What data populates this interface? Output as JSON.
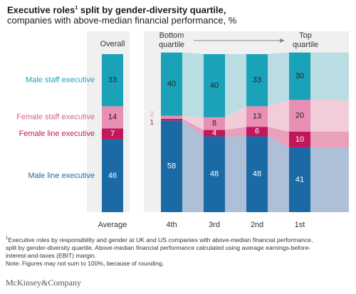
{
  "header": {
    "title": "Executive roles",
    "title_sup": "1",
    "title_rest": " split by gender-diversity quartile,",
    "subtitle": "companies with above-median financial performance, %"
  },
  "chart_data": {
    "type": "bar",
    "stacked": true,
    "left_panel": {
      "column_header": "Overall",
      "categories": [
        "Average"
      ],
      "series": [
        {
          "name": "Male line executive",
          "values": [
            46
          ],
          "color": "#1b6aa5"
        },
        {
          "name": "Female line executive",
          "values": [
            7
          ],
          "color": "#c2185b"
        },
        {
          "name": "Female staff executive",
          "values": [
            14
          ],
          "color": "#e88fb3"
        },
        {
          "name": "Male staff executive",
          "values": [
            33
          ],
          "color": "#1aa3b8"
        }
      ]
    },
    "right_panel": {
      "header_left": [
        "Bottom",
        "quartile"
      ],
      "header_right": [
        "Top",
        "quartile"
      ],
      "categories": [
        "4th",
        "3rd",
        "2nd",
        "1st"
      ],
      "series": [
        {
          "name": "Male line executive",
          "values": [
            58,
            48,
            48,
            41
          ],
          "color": "#1b6aa5"
        },
        {
          "name": "Female line executive",
          "values": [
            1,
            4,
            6,
            10
          ],
          "color": "#c2185b"
        },
        {
          "name": "Female staff executive",
          "values": [
            2,
            8,
            13,
            20
          ],
          "color": "#e88fb3"
        },
        {
          "name": "Male staff executive",
          "values": [
            40,
            40,
            33,
            30
          ],
          "color": "#1aa3b8"
        }
      ],
      "outside_labels": [
        {
          "series": "Female staff executive",
          "text": "2"
        },
        {
          "series": "Female line executive",
          "text": "1"
        }
      ]
    },
    "ylim": [
      0,
      100
    ]
  },
  "footnote": {
    "sup": "1",
    "line1": "Executive roles by responsibility and gender at UK and US companies with above-median financial performance,",
    "line2": "split by gender-diversity quartile. Above-median financial performance calculated using average earnings-before-",
    "line3": "interest-and-taxes (EBIT) margin.",
    "line4": "Note: Figures may not sum to 100%, because of rounding."
  },
  "brand": "McKinsey&Company"
}
